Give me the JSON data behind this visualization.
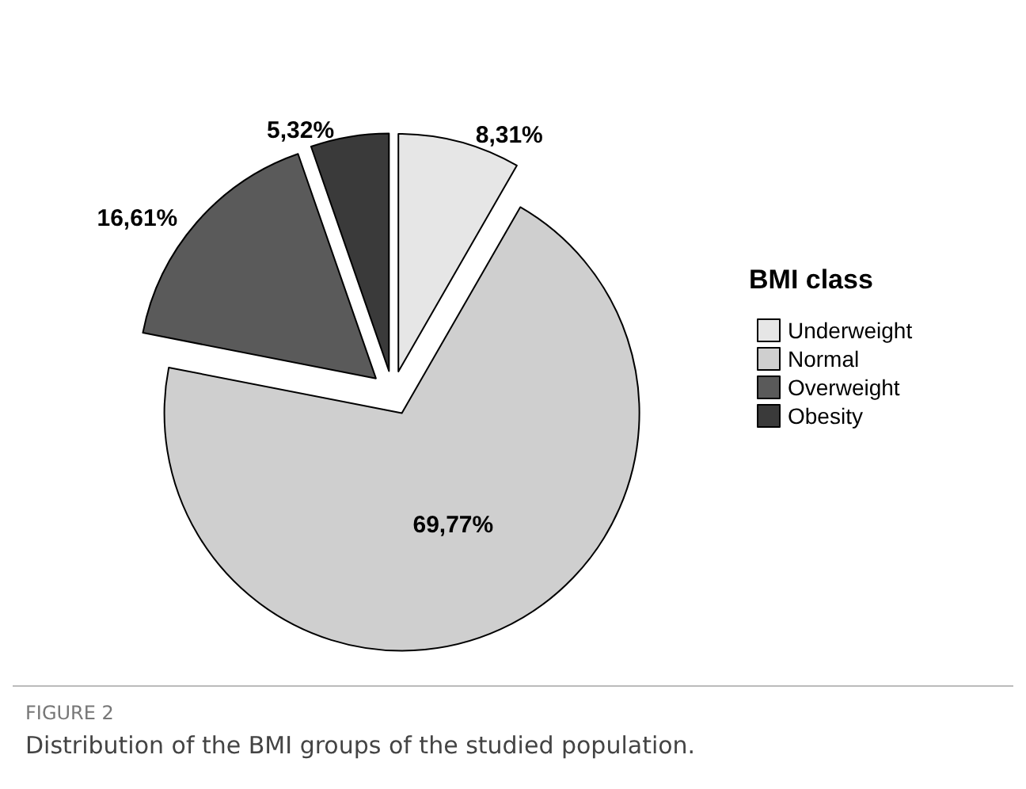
{
  "chart_data": {
    "type": "pie",
    "legend_title": "BMI class",
    "categories": [
      "Underweight",
      "Normal",
      "Overweight",
      "Obesity"
    ],
    "values": [
      8.31,
      69.77,
      16.61,
      5.32
    ],
    "value_labels": [
      "8,31%",
      "69,77%",
      "16,61%",
      "5,32%"
    ],
    "colors": [
      "#e6e6e6",
      "#cfcfcf",
      "#5a5a5a",
      "#3a3a3a"
    ],
    "legend": "right",
    "annotations": [
      "FIGURE 2",
      "Distribution of the BMI groups of the studied population."
    ]
  }
}
